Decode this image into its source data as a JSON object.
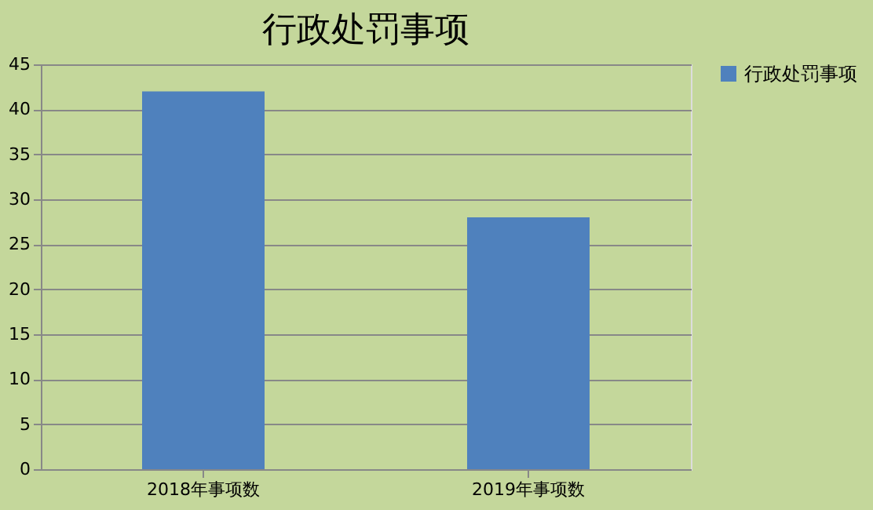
{
  "chart_data": {
    "type": "bar",
    "title": "行政处罚事项",
    "categories": [
      "2018年事项数",
      "2019年事项数"
    ],
    "series": [
      {
        "name": "行政处罚事项",
        "color": "#4f81bd",
        "values": [
          42,
          28
        ]
      }
    ],
    "ylim": [
      0,
      45
    ],
    "yticks": [
      0,
      5,
      10,
      15,
      20,
      25,
      30,
      35,
      40,
      45
    ],
    "grid": "y",
    "legend": "right"
  }
}
